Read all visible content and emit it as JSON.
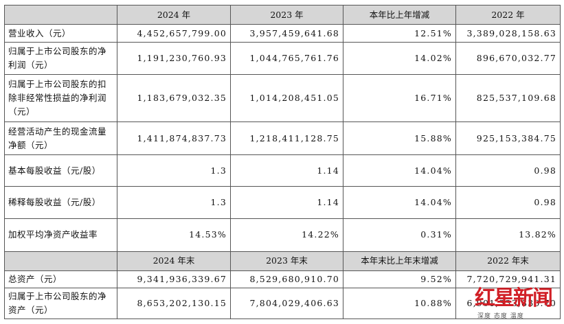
{
  "header1": {
    "c0": "",
    "c1": "2024 年",
    "c2": "2023 年",
    "c3": "本年比上年增减",
    "c4": "2022 年"
  },
  "rows1": [
    {
      "label": "营业收入（元）",
      "v2024": "4,452,657,799.00",
      "v2023": "3,957,459,641.68",
      "change": "12.51%",
      "v2022": "3,389,028,158.63"
    },
    {
      "label": "归属于上市公司股东的净利润（元）",
      "v2024": "1,191,230,760.93",
      "v2023": "1,044,765,761.76",
      "change": "14.02%",
      "v2022": "896,670,032.77"
    },
    {
      "label": "归属于上市公司股东的扣除非经常性损益的净利润（元）",
      "v2024": "1,183,679,032.35",
      "v2023": "1,014,208,451.05",
      "change": "16.71%",
      "v2022": "825,537,109.68"
    },
    {
      "label": "经营活动产生的现金流量净额（元）",
      "v2024": "1,411,874,837.73",
      "v2023": "1,218,411,128.75",
      "change": "15.88%",
      "v2022": "925,153,384.75"
    },
    {
      "label": "基本每股收益（元/股）",
      "v2024": "1.3",
      "v2023": "1.14",
      "change": "14.04%",
      "v2022": "0.98"
    },
    {
      "label": "稀释每股收益（元/股）",
      "v2024": "1.3",
      "v2023": "1.14",
      "change": "14.04%",
      "v2022": "0.98"
    },
    {
      "label": "加权平均净资产收益率",
      "v2024": "14.53%",
      "v2023": "14.22%",
      "change": "0.31%",
      "v2022": "13.82%"
    }
  ],
  "header2": {
    "c0": "",
    "c1": "2024 年末",
    "c2": "2023 年末",
    "c3": "本年末比上年末增减",
    "c4": "2022 年末"
  },
  "rows2": [
    {
      "label": "总资产（元）",
      "v2024": "9,341,936,339.67",
      "v2023": "8,529,680,910.70",
      "change": "9.52%",
      "v2022": "7,720,729,941.31"
    },
    {
      "label": "归属于上市公司股东的净资产（元）",
      "v2024": "8,653,202,130.15",
      "v2023": "7,804,029,406.63",
      "change": "10.88%",
      "v2022": "6,901,333,830.70"
    }
  ],
  "watermark": {
    "brand": "红星新闻",
    "tagline": "深度 态度 温度",
    "color": "#d11f26"
  }
}
